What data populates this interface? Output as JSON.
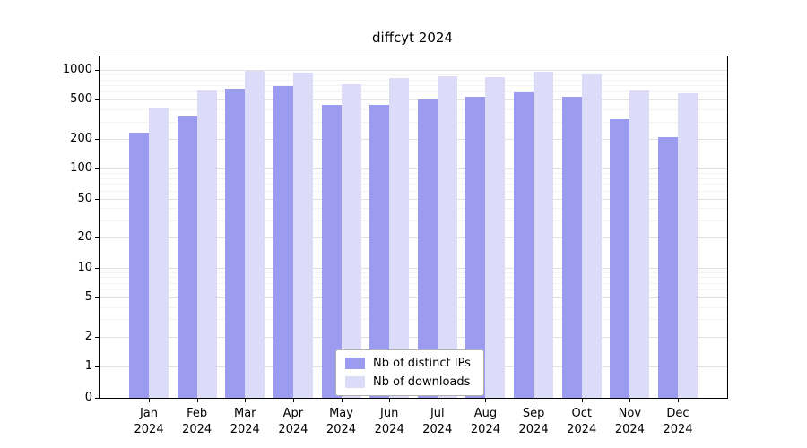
{
  "title": "diffcyt 2024",
  "chart_data": {
    "type": "bar",
    "title": "diffcyt 2024",
    "categories": [
      "Jan",
      "Feb",
      "Mar",
      "Apr",
      "May",
      "Jun",
      "Jul",
      "Aug",
      "Sep",
      "Oct",
      "Nov",
      "Dec"
    ],
    "year": "2024",
    "series": [
      {
        "name": "Nb of distinct IPs",
        "color": "#9b9bef",
        "values": [
          230,
          340,
          650,
          690,
          440,
          440,
          500,
          540,
          590,
          530,
          320,
          210
        ]
      },
      {
        "name": "Nb of downloads",
        "color": "#dcdcf8",
        "values": [
          420,
          620,
          980,
          940,
          720,
          830,
          870,
          840,
          950,
          900,
          620,
          580
        ]
      }
    ],
    "y_ticks": [
      0,
      1,
      2,
      5,
      10,
      20,
      50,
      100,
      200,
      500,
      1000
    ],
    "y_scale": "log",
    "ylim": [
      0,
      1200
    ],
    "xlabel": "",
    "ylabel": "",
    "grid": "horizontal",
    "legend_position": "bottom-center"
  }
}
